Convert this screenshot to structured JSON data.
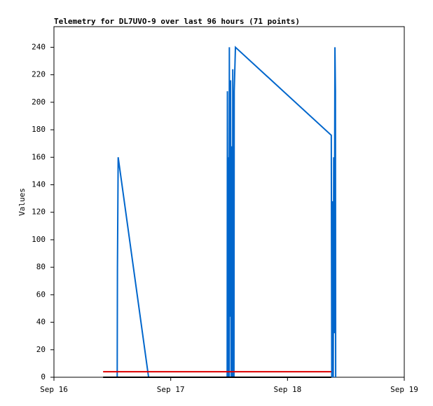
{
  "chart_data": {
    "type": "line",
    "title": "Telemetry for DL7UVO-9 over last 96 hours (71 points)",
    "y_label": "Values",
    "xlim": [
      0,
      72
    ],
    "xticks": [
      {
        "value": 0,
        "label": "Sep 16"
      },
      {
        "value": 24,
        "label": "Sep 17"
      },
      {
        "value": 48,
        "label": "Sep 18"
      },
      {
        "value": 72,
        "label": "Sep 19"
      }
    ],
    "ylim": [
      0,
      255
    ],
    "yticks": [
      0,
      20,
      40,
      60,
      80,
      100,
      120,
      140,
      160,
      180,
      200,
      220,
      240
    ],
    "grid": false,
    "series": [
      {
        "color": "#0066cc",
        "x": [
          13.0,
          13.05,
          13.2,
          19.45,
          35.6,
          35.65,
          35.75,
          35.85,
          36.0,
          36.05,
          36.15,
          36.3,
          36.4,
          36.5,
          36.6,
          36.7,
          36.75,
          36.85,
          36.9,
          37.0,
          37.05,
          37.3,
          57.0,
          57.1,
          57.2,
          57.3,
          57.4,
          57.5,
          57.6,
          57.75,
          57.85,
          57.9
        ],
        "values": [
          0,
          80,
          160,
          0,
          0,
          208,
          0,
          160,
          0,
          240,
          44,
          216,
          0,
          168,
          72,
          0,
          224,
          0,
          208,
          0,
          208,
          240,
          176,
          0,
          96,
          128,
          0,
          160,
          32,
          240,
          208,
          0
        ]
      },
      {
        "color": "#dd0000",
        "x": [
          10.1,
          57.0
        ],
        "values": [
          4,
          4
        ]
      },
      {
        "color": "#000000",
        "x": [
          10.1,
          57.0
        ],
        "values": [
          0,
          0
        ]
      }
    ]
  }
}
